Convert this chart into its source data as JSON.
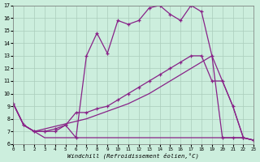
{
  "xlabel": "Windchill (Refroidissement éolien,°C)",
  "background_color": "#cceedd",
  "grid_color": "#aaccbb",
  "line_color": "#882288",
  "xlim": [
    0,
    23
  ],
  "ylim": [
    6,
    17
  ],
  "xticks": [
    0,
    1,
    2,
    3,
    4,
    5,
    6,
    7,
    8,
    9,
    10,
    11,
    12,
    13,
    14,
    15,
    16,
    17,
    18,
    19,
    20,
    21,
    22,
    23
  ],
  "yticks": [
    6,
    7,
    8,
    9,
    10,
    11,
    12,
    13,
    14,
    15,
    16,
    17
  ],
  "line_upper_x": [
    0,
    1,
    2,
    3,
    4,
    5,
    6,
    7,
    8,
    9,
    10,
    11,
    12,
    13,
    14,
    15,
    16,
    17,
    18,
    19,
    20,
    21,
    22,
    23
  ],
  "line_upper_y": [
    9.2,
    7.5,
    7.0,
    7.0,
    7.0,
    7.5,
    6.5,
    13.0,
    14.8,
    13.2,
    15.8,
    15.5,
    15.8,
    16.8,
    17.0,
    16.3,
    15.8,
    17.0,
    16.5,
    13.0,
    6.5,
    6.5,
    6.5,
    6.3
  ],
  "line_mid_x": [
    0,
    1,
    2,
    3,
    4,
    5,
    6,
    7,
    8,
    9,
    10,
    11,
    12,
    13,
    14,
    15,
    16,
    17,
    18,
    19,
    20,
    21,
    22,
    23
  ],
  "line_mid_y": [
    9.2,
    7.5,
    7.0,
    7.0,
    7.2,
    7.5,
    8.5,
    8.5,
    8.8,
    9.0,
    9.5,
    10.0,
    10.5,
    11.0,
    11.5,
    12.0,
    12.5,
    13.0,
    13.0,
    11.0,
    11.0,
    9.0,
    6.5,
    6.3
  ],
  "line_diag_x": [
    0,
    1,
    2,
    3,
    4,
    5,
    6,
    7,
    8,
    9,
    10,
    11,
    12,
    13,
    14,
    15,
    16,
    17,
    18,
    19,
    20,
    21,
    22,
    23
  ],
  "line_diag_y": [
    9.2,
    7.5,
    7.0,
    7.2,
    7.4,
    7.6,
    7.8,
    8.0,
    8.3,
    8.6,
    8.9,
    9.2,
    9.6,
    10.0,
    10.5,
    11.0,
    11.5,
    12.0,
    12.5,
    13.0,
    11.0,
    9.0,
    6.5,
    6.3
  ],
  "line_flat_x": [
    0,
    1,
    2,
    3,
    4,
    5,
    6,
    7,
    8,
    9,
    10,
    11,
    12,
    13,
    14,
    15,
    16,
    17,
    18,
    19,
    20,
    21,
    22,
    23
  ],
  "line_flat_y": [
    9.2,
    7.5,
    7.0,
    6.5,
    6.5,
    6.5,
    6.5,
    6.5,
    6.5,
    6.5,
    6.5,
    6.5,
    6.5,
    6.5,
    6.5,
    6.5,
    6.5,
    6.5,
    6.5,
    6.5,
    6.5,
    6.5,
    6.5,
    6.3
  ]
}
